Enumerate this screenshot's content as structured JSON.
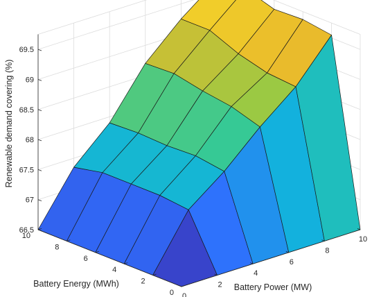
{
  "chart_data": {
    "type": "surface",
    "xlabel": "Battery Power (MW)",
    "ylabel": "Battery Energy (MWh)",
    "zlabel": "Renewable demand covering (%)",
    "xlim": [
      0,
      10
    ],
    "ylim": [
      0,
      10
    ],
    "zlim": [
      66.5,
      69.75
    ],
    "xticks": [
      "0",
      "2",
      "4",
      "6",
      "8",
      "10"
    ],
    "yticks": [
      "0",
      "2",
      "4",
      "6",
      "8",
      "10"
    ],
    "zticks": [
      "66.5",
      "67",
      "67.5",
      "68",
      "68.5",
      "69",
      "69.5"
    ],
    "x": [
      0,
      2,
      4,
      6,
      8,
      10
    ],
    "y": [
      0,
      2,
      4,
      6,
      8,
      10
    ],
    "z": [
      [
        66.5,
        66.5,
        66.5,
        66.5,
        66.5,
        66.5
      ],
      [
        66.5,
        67.4,
        67.85,
        68.4,
        68.88,
        69.55
      ],
      [
        66.5,
        67.45,
        67.92,
        68.55,
        68.92,
        69.62
      ],
      [
        66.5,
        67.45,
        67.9,
        68.62,
        69.05,
        69.6
      ],
      [
        66.5,
        67.45,
        67.92,
        68.72,
        69.25,
        69.75
      ],
      [
        66.5,
        67.35,
        67.9,
        68.7,
        69.25,
        69.7
      ]
    ],
    "colormap": [
      "#3e26a8",
      "#2f6ffd",
      "#12b3dc",
      "#2bc99e",
      "#98ca44",
      "#e8b92c",
      "#f9e028"
    ],
    "grid": true
  }
}
